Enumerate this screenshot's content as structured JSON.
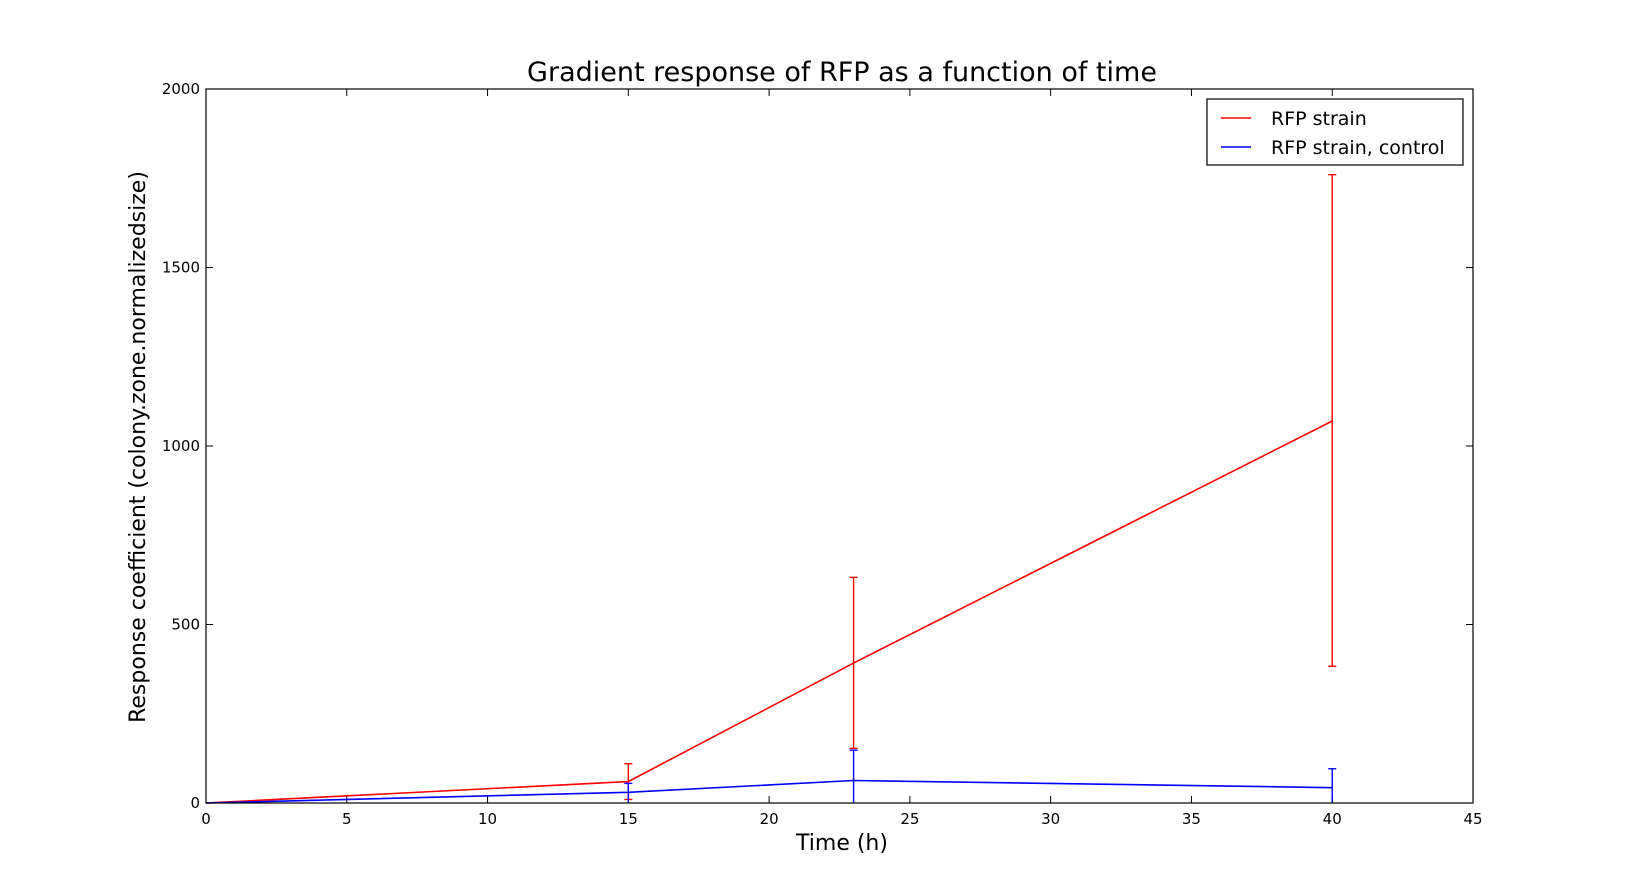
{
  "chart_data": {
    "type": "line",
    "title": "Gradient response of RFP as a function of time",
    "xlabel": "Time (h)",
    "ylabel": "Response coefficient (colony.zone.normalizedsize)",
    "xlim": [
      0,
      45
    ],
    "ylim": [
      0,
      2000
    ],
    "xticks": [
      0,
      5,
      10,
      15,
      20,
      25,
      30,
      35,
      40,
      45
    ],
    "yticks": [
      0,
      500,
      1000,
      1500,
      2000
    ],
    "grid": false,
    "legend_position": "top-right",
    "series": [
      {
        "name": "RFP strain",
        "color": "#ff0000",
        "x": [
          0,
          15,
          23,
          40
        ],
        "y": [
          0,
          60,
          392,
          1070
        ],
        "error_low": [
          0,
          10,
          153,
          383
        ],
        "error_high": [
          0,
          110,
          632,
          1760
        ]
      },
      {
        "name": "RFP strain, control",
        "color": "#0000ff",
        "x": [
          0,
          15,
          23,
          40
        ],
        "y": [
          0,
          30,
          63,
          43
        ],
        "error_low": [
          0,
          0,
          0,
          0
        ],
        "error_high": [
          0,
          55,
          148,
          96
        ]
      }
    ]
  }
}
